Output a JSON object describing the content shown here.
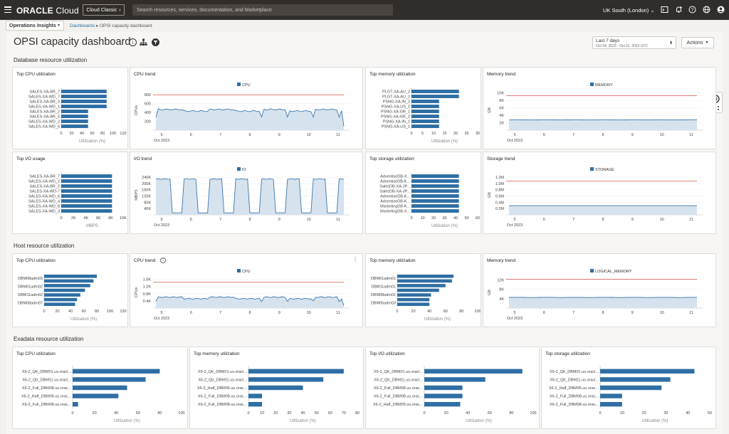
{
  "topbar": {
    "brand_bold": "ORACLE",
    "brand_light": " Cloud",
    "classic_label": "Cloud Classic",
    "classic_chevron": "›",
    "search_placeholder": "Search resources, services, documentation, and Marketplace",
    "region": "UK South (London)",
    "region_chevron": "⌄"
  },
  "subheader": {
    "service": "Operations Insights",
    "service_chevron": "▼",
    "crumb_link": "Dashboards",
    "crumb_sep": " ▸ ",
    "crumb_current": "OPSI capacity dashboard"
  },
  "page": {
    "title": "OPSI capacity dashboard",
    "date_label": "Last 7 days",
    "date_range": "Oct 04, 2023 - Oct 11, 2023 UTC",
    "date_arrows": "⬍",
    "actions_label": "Actions",
    "actions_chevron": "▼"
  },
  "sections": {
    "db": "Database resource utilization",
    "host": "Host resource utilization",
    "exadata": "Exadata resource utilization"
  },
  "panels": {
    "db_top_cpu": {
      "title": "Top CPU utilization",
      "xlabel": "Utilization (%)",
      "ticks": [
        0,
        20,
        40,
        60,
        80,
        100,
        120
      ],
      "max": 120,
      "items": [
        [
          "SALES-XA-BR_7",
          88
        ],
        [
          "SALES-XA-WD_7",
          88
        ],
        [
          "SALES-XA-BR_3",
          88
        ],
        [
          "SALES-XA-WD_1",
          88
        ],
        [
          "SALES-XA-BR_2",
          52
        ],
        [
          "SALES-XA-BR_5",
          52
        ],
        [
          "SALES-XA-WD_2",
          52
        ],
        [
          "SALES-XA-WD_6",
          52
        ]
      ]
    },
    "db_cpu_trend": {
      "title": "CPU trend",
      "legend": "CPU",
      "ylabel": "CPUs",
      "yticks": [
        200,
        400,
        600,
        800
      ],
      "ymax": 900,
      "ref": 800,
      "xticks": [
        "5",
        "6",
        "7",
        "8",
        "9",
        "10",
        "11"
      ],
      "xsub": "Oct 2023"
    },
    "db_top_mem": {
      "title": "Top memory utilization",
      "xlabel": "Utilization (%)",
      "ticks": [
        0,
        5,
        10,
        15,
        20,
        25,
        30
      ],
      "max": 30,
      "items": [
        [
          "PLGT-XA-AU_2",
          21.5
        ],
        [
          "PLGT-XA-AU_1",
          21.5
        ],
        [
          "PSNG-XA-IN_2",
          12.5
        ],
        [
          "PSNG-XA-US_2",
          12.5
        ],
        [
          "PSNG-XA-GR_1",
          12.5
        ],
        [
          "PSNG-XA-GR_2",
          12.5
        ],
        [
          "PSNG-XA-IN_1",
          12.5
        ],
        [
          "PSNG-XA-US_1",
          12.5
        ]
      ]
    },
    "db_mem_trend": {
      "title": "Memory trend",
      "legend": "MEMORY",
      "ylabel": "GB",
      "yticks": [
        "2K",
        "4K",
        "6K",
        "8K",
        "10K"
      ],
      "ymax": 11,
      "ref": 9.5,
      "xticks": [
        "5",
        "6",
        "7",
        "8",
        "9",
        "10",
        "11"
      ],
      "xsub": "Oct 2023"
    },
    "db_top_io": {
      "title": "Top I/O usage",
      "xlabel": "MBPS",
      "ticks": [
        "0",
        "2K",
        "4K",
        "6K",
        "8K",
        "10K"
      ],
      "max": 10,
      "items": [
        [
          "SALES-XA-BR_7",
          8.2
        ],
        [
          "SALES-XA-WD_2",
          8.2
        ],
        [
          "SALES-XA-BR_2",
          8.2
        ],
        [
          "SALES-XA-WD-7",
          8.2
        ],
        [
          "SALES-XA-WD_6",
          8.2
        ],
        [
          "SALES-XA-WD_4",
          8.2
        ],
        [
          "SALES-XA-WD_8",
          8.2
        ],
        [
          "SALES-XA-WD_3",
          8.2
        ]
      ]
    },
    "db_io_trend": {
      "title": "I/O trend",
      "legend": "IO",
      "ylabel": "MBPS",
      "yticks": [
        "40K",
        "80K",
        "120K",
        "160K",
        "200K",
        "240K"
      ],
      "ymax": 250,
      "xticks": [
        "5",
        "6",
        "7",
        "8",
        "9",
        "10",
        "11"
      ],
      "xsub": "Oct 2023"
    },
    "db_top_storage": {
      "title": "Top storage utilization",
      "xlabel": "Utilization (%)",
      "ticks": [
        0,
        10,
        20,
        30,
        40,
        50,
        60
      ],
      "max": 60,
      "items": [
        [
          "AdventiseDB-X...",
          43
        ],
        [
          "AdventiseDB-K...",
          43
        ],
        [
          "SalesDB-XA-JP...",
          43
        ],
        [
          "SalesDB-XA-JP...",
          43
        ],
        [
          "AdventiseDB-K...",
          43
        ],
        [
          "AdventiseDB-K...",
          43
        ],
        [
          "MarketingDB-K...",
          43
        ],
        [
          "MarketingDB-X...",
          43
        ]
      ]
    },
    "db_storage_trend": {
      "title": "Storage trend",
      "legend": "STORAGE",
      "ylabel": "GB",
      "yticks": [
        "0.2M",
        "0.4M",
        "0.6M",
        "0.8M",
        "1.0M",
        "1.2M"
      ],
      "ymax": 1.3,
      "ref": 1.1,
      "xticks": [
        "5",
        "6",
        "7",
        "8",
        "9",
        "10",
        "11"
      ],
      "xsub": "Oct 2023"
    },
    "host_top_cpu": {
      "title": "Top CPU utilization",
      "xlabel": "Utilization (%)",
      "ticks": [
        0,
        20,
        40,
        60,
        80,
        100,
        120
      ],
      "max": 120,
      "items": [
        [
          "DBM08adm03",
          80
        ],
        [
          "DBM01adm02",
          75
        ],
        [
          "DBM11adm02",
          70
        ],
        [
          "DBM08adm07",
          62
        ],
        [
          "",
          55
        ],
        [
          "",
          50
        ],
        [
          "",
          47
        ]
      ],
      "labels": [
        "DBM08adm03",
        "DBM01adm02",
        "DBM11adm02",
        "DBM08adm07"
      ]
    },
    "host_cpu_trend": {
      "title": "CPU trend",
      "legend": "CPU",
      "ylabel": "CPUs",
      "yticks": [
        "0.4K",
        "0.8K",
        "1.2K",
        "1.6K"
      ],
      "ymax": 1.7,
      "ref": 1.4,
      "xticks": [
        "5",
        "6",
        "7",
        "8",
        "9",
        "10",
        "11"
      ],
      "xsub": "Oct 2023"
    },
    "host_top_mem": {
      "title": "Top memory utilization",
      "xlabel": "Utilization (%)",
      "ticks": [
        0,
        20,
        40,
        60,
        80,
        100
      ],
      "max": 100,
      "items": [
        [
          "DBM01adm01",
          70
        ],
        [
          "",
          68
        ],
        [
          "DBM11adm01",
          60
        ],
        [
          "",
          52
        ],
        [
          "DBM08adm01",
          42
        ],
        [
          "",
          40
        ],
        [
          "DBM05adm03",
          40
        ]
      ],
      "labels": [
        "DBM01adm01",
        "DBM11adm01",
        "DBM08adm01",
        "DBM05adm03"
      ]
    },
    "host_mem_trend": {
      "title": "Memory trend",
      "legend": "LOGICAL_MEMORY",
      "ylabel": "GB",
      "yticks": [
        "4K",
        "8K",
        "12K"
      ],
      "ymax": 13,
      "ref": 12,
      "xticks": [
        "5",
        "6",
        "7",
        "8",
        "9",
        "10",
        "11"
      ],
      "xsub": "Oct 2023"
    },
    "exa_top_cpu": {
      "title": "Top CPU utilization",
      "xlabel": "Utilization (%)",
      "ticks": [
        0,
        20,
        40,
        60,
        80,
        100
      ],
      "max": 100,
      "items": [
        [
          "X6-2_Qtr_DBM01.us.oracl...",
          80
        ],
        [
          "X6-2_Qtr_DBM11.us.oracl...",
          67
        ],
        [
          "X6-2_Full_DBM08.us.orac...",
          50
        ],
        [
          "X6-2_Half_DBM05.us.orac...",
          42
        ],
        [
          "X6-2_Full_DBM08.us.orac...",
          5
        ]
      ]
    },
    "exa_top_mem": {
      "title": "Top memory utilization",
      "xlabel": "Utilization (%)",
      "ticks": [
        0,
        10,
        20,
        30,
        40,
        50,
        60,
        70,
        80
      ],
      "max": 80,
      "items": [
        [
          "X6-2_Qtr_DBM01.us.oracl...",
          70
        ],
        [
          "X6-2_Qtr_DBM11.us.oracl...",
          55
        ],
        [
          "X6-2_Half_DBM05.us.orac...",
          40
        ],
        [
          "X6-2_Full_DBM08.us.orac...",
          10
        ],
        [
          "X6-2_Full_DBM08.us.orac...",
          10
        ]
      ]
    },
    "exa_top_io": {
      "title": "Top I/O utilization",
      "xlabel": "Utilization (%)",
      "ticks": [
        0,
        20,
        40,
        60,
        80,
        100
      ],
      "max": 100,
      "items": [
        [
          "X6-2_Qtr_DBM01.us.oracl...",
          90
        ],
        [
          "X6-2_Qtr_DBM11.us.oracl...",
          56
        ],
        [
          "X6-2_Full_DBM08.us.orac...",
          35
        ],
        [
          "X6-2_Full_DBM08.us.orac...",
          35
        ],
        [
          "X6-2_Half_DBM05.us.orac...",
          33
        ]
      ]
    },
    "exa_top_storage": {
      "title": "Top storage utilization",
      "xlabel": "Utilization (%)",
      "ticks": [
        0,
        10,
        20,
        30,
        40,
        50
      ],
      "max": 50,
      "items": [
        [
          "X6-2_Qtr_DBM01.us.oracl...",
          43
        ],
        [
          "X6-2_Qtr_DBM11.us.oracl...",
          32
        ],
        [
          "X6-2_Half_DBM05.us.orac...",
          28
        ],
        [
          "X6-2_Full_DBM08.us.orac...",
          10
        ],
        [
          "X6-2_Full_DBM08.us.orac...",
          10
        ]
      ]
    }
  },
  "colors": {
    "bar": "#2e6ea4",
    "ref_line": "#d9534f",
    "area": "#d6e2ee",
    "line": "#3b78ad"
  }
}
